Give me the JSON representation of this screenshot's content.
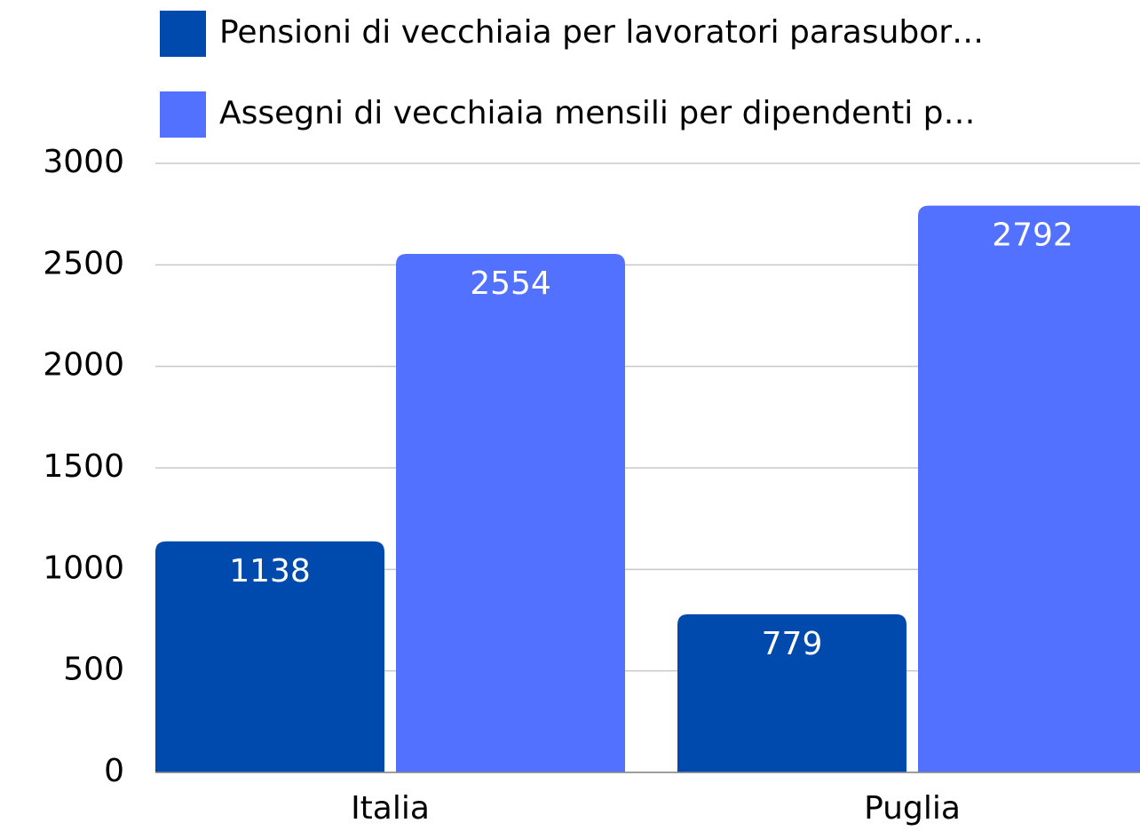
{
  "chart_data": {
    "type": "bar",
    "categories": [
      "Italia",
      "Puglia"
    ],
    "series": [
      {
        "name": "Pensioni di vecchiaia per lavoratori parasubor…",
        "color": "#004aad",
        "values": [
          1138,
          779
        ]
      },
      {
        "name": "Assegni di vecchiaia mensili per dipendenti p…",
        "color": "#5271ff",
        "values": [
          2554,
          2792
        ]
      }
    ],
    "ylim": [
      0,
      3000
    ],
    "yticks": [
      0,
      500,
      1000,
      1500,
      2000,
      2500,
      3000
    ],
    "grid": true
  }
}
